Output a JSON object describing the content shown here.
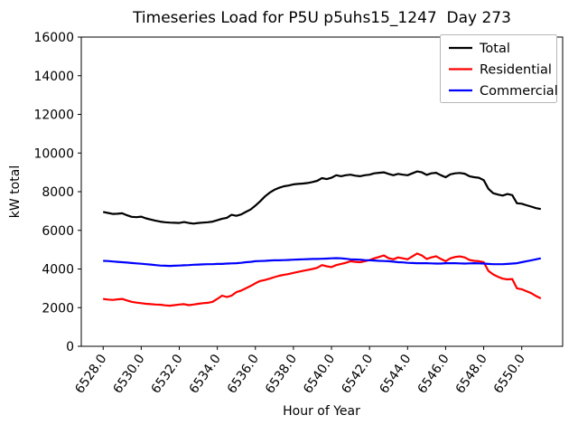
{
  "chart_data": {
    "type": "line",
    "title": "Timeseries Load for P5U p5uhs15_1247  Day 273",
    "xlabel": "Hour of Year",
    "ylabel": "kW total",
    "xlim": [
      6526.85,
      6552.15
    ],
    "ylim": [
      0,
      16000
    ],
    "grid": false,
    "legend_position": "upper right",
    "x_ticks": [
      6528,
      6530,
      6532,
      6534,
      6536,
      6538,
      6540,
      6542,
      6544,
      6546,
      6548,
      6550
    ],
    "x_tick_labels": [
      "6528.0",
      "6530.0",
      "6532.0",
      "6534.0",
      "6536.0",
      "6538.0",
      "6540.0",
      "6542.0",
      "6544.0",
      "6546.0",
      "6548.0",
      "6550.0"
    ],
    "y_ticks": [
      0,
      2000,
      4000,
      6000,
      8000,
      10000,
      12000,
      14000,
      16000
    ],
    "y_tick_labels": [
      "0",
      "2000",
      "4000",
      "6000",
      "8000",
      "10000",
      "12000",
      "14000",
      "16000"
    ],
    "x_start": 6528.0,
    "x_step": 0.25,
    "series": [
      {
        "name": "Total",
        "color": "#000000",
        "values": [
          6950,
          6900,
          6850,
          6860,
          6880,
          6780,
          6700,
          6680,
          6710,
          6620,
          6560,
          6500,
          6450,
          6420,
          6400,
          6390,
          6380,
          6430,
          6380,
          6350,
          6380,
          6400,
          6420,
          6450,
          6520,
          6600,
          6650,
          6800,
          6750,
          6820,
          6950,
          7080,
          7280,
          7500,
          7750,
          7950,
          8100,
          8200,
          8280,
          8320,
          8380,
          8400,
          8420,
          8450,
          8500,
          8560,
          8700,
          8650,
          8720,
          8850,
          8800,
          8850,
          8880,
          8830,
          8800,
          8850,
          8880,
          8950,
          8980,
          9000,
          8920,
          8850,
          8920,
          8880,
          8850,
          8950,
          9050,
          9000,
          8870,
          8950,
          8980,
          8850,
          8750,
          8900,
          8950,
          8970,
          8930,
          8800,
          8750,
          8720,
          8600,
          8150,
          7920,
          7850,
          7800,
          7880,
          7820,
          7400,
          7380,
          7300,
          7230,
          7150,
          7100
        ]
      },
      {
        "name": "Residential",
        "color": "#ff0000",
        "values": [
          2450,
          2420,
          2400,
          2430,
          2450,
          2370,
          2300,
          2260,
          2230,
          2200,
          2180,
          2160,
          2150,
          2120,
          2100,
          2130,
          2160,
          2180,
          2130,
          2160,
          2200,
          2230,
          2250,
          2300,
          2450,
          2620,
          2550,
          2620,
          2800,
          2880,
          3000,
          3120,
          3260,
          3380,
          3430,
          3500,
          3580,
          3650,
          3700,
          3740,
          3800,
          3850,
          3900,
          3950,
          4000,
          4060,
          4200,
          4140,
          4100,
          4200,
          4260,
          4320,
          4400,
          4370,
          4350,
          4400,
          4460,
          4550,
          4620,
          4700,
          4560,
          4500,
          4600,
          4550,
          4500,
          4650,
          4800,
          4700,
          4520,
          4600,
          4660,
          4520,
          4400,
          4550,
          4620,
          4650,
          4600,
          4470,
          4420,
          4400,
          4350,
          3900,
          3720,
          3600,
          3500,
          3460,
          3480,
          3000,
          2950,
          2850,
          2750,
          2600,
          2480
        ]
      },
      {
        "name": "Commercial",
        "color": "#0000ff",
        "values": [
          4420,
          4410,
          4390,
          4370,
          4350,
          4330,
          4310,
          4290,
          4270,
          4250,
          4230,
          4200,
          4180,
          4170,
          4160,
          4170,
          4180,
          4190,
          4200,
          4220,
          4230,
          4240,
          4250,
          4250,
          4260,
          4260,
          4280,
          4290,
          4300,
          4320,
          4350,
          4370,
          4400,
          4410,
          4420,
          4440,
          4450,
          4450,
          4460,
          4470,
          4480,
          4490,
          4500,
          4510,
          4520,
          4520,
          4530,
          4540,
          4550,
          4560,
          4550,
          4530,
          4500,
          4490,
          4480,
          4460,
          4450,
          4440,
          4420,
          4410,
          4400,
          4380,
          4350,
          4340,
          4320,
          4310,
          4300,
          4300,
          4300,
          4290,
          4280,
          4280,
          4300,
          4300,
          4300,
          4290,
          4280,
          4290,
          4300,
          4290,
          4280,
          4260,
          4250,
          4250,
          4250,
          4260,
          4280,
          4300,
          4350,
          4400,
          4450,
          4500,
          4550
        ]
      }
    ]
  }
}
